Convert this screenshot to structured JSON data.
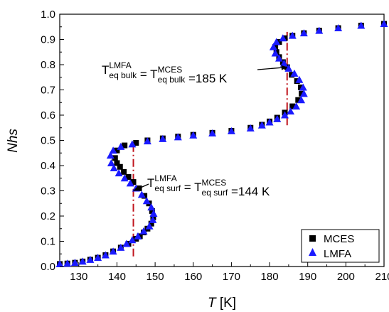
{
  "chart_data": {
    "type": "scatter",
    "xlabel": {
      "symbol": "T",
      "unit": " [K]"
    },
    "ylabel": "Nhs",
    "xlim": [
      125,
      210
    ],
    "ylim": [
      0.0,
      1.0
    ],
    "x_ticks": [
      130,
      140,
      150,
      160,
      170,
      180,
      190,
      200,
      210
    ],
    "y_ticks": [
      0.0,
      0.1,
      0.2,
      0.3,
      0.4,
      0.5,
      0.6,
      0.7,
      0.8,
      0.9,
      1.0
    ],
    "legend_position": "bottom-right",
    "grid": false,
    "series": [
      {
        "name": "MCES",
        "marker": "square",
        "color": "#000000",
        "points": [
          [
            125,
            0.01
          ],
          [
            127,
            0.012
          ],
          [
            129,
            0.015
          ],
          [
            131,
            0.02
          ],
          [
            133,
            0.027
          ],
          [
            135,
            0.035
          ],
          [
            137,
            0.045
          ],
          [
            139,
            0.06
          ],
          [
            141,
            0.075
          ],
          [
            143,
            0.09
          ],
          [
            145,
            0.11
          ],
          [
            146,
            0.12
          ],
          [
            147,
            0.135
          ],
          [
            148,
            0.15
          ],
          [
            149,
            0.17
          ],
          [
            149.5,
            0.195
          ],
          [
            149.2,
            0.22
          ],
          [
            148.4,
            0.25
          ],
          [
            147.2,
            0.28
          ],
          [
            145.8,
            0.31
          ],
          [
            144.3,
            0.335
          ],
          [
            143,
            0.355
          ],
          [
            141.8,
            0.375
          ],
          [
            140.8,
            0.395
          ],
          [
            140,
            0.41
          ],
          [
            139.5,
            0.43
          ],
          [
            140,
            0.46
          ],
          [
            142,
            0.48
          ],
          [
            145,
            0.49
          ],
          [
            148,
            0.5
          ],
          [
            152,
            0.508
          ],
          [
            156,
            0.515
          ],
          [
            160,
            0.522
          ],
          [
            165,
            0.53
          ],
          [
            170,
            0.538
          ],
          [
            175,
            0.55
          ],
          [
            178,
            0.562
          ],
          [
            180,
            0.575
          ],
          [
            182,
            0.59
          ],
          [
            184,
            0.61
          ],
          [
            186,
            0.635
          ],
          [
            187.5,
            0.66
          ],
          [
            188.4,
            0.685
          ],
          [
            188.2,
            0.71
          ],
          [
            187.2,
            0.735
          ],
          [
            185.8,
            0.76
          ],
          [
            184.6,
            0.79
          ],
          [
            183.5,
            0.81
          ],
          [
            182.5,
            0.83
          ],
          [
            181.8,
            0.85
          ],
          [
            181.5,
            0.87
          ],
          [
            182.5,
            0.89
          ],
          [
            184,
            0.905
          ],
          [
            186,
            0.915
          ],
          [
            189,
            0.925
          ],
          [
            193,
            0.935
          ],
          [
            198,
            0.945
          ],
          [
            204,
            0.955
          ],
          [
            210,
            0.962
          ]
        ]
      },
      {
        "name": "LMFA",
        "marker": "triangle",
        "color": "#1a1aff",
        "points": [
          [
            125,
            0.01
          ],
          [
            127,
            0.012
          ],
          [
            129,
            0.015
          ],
          [
            131,
            0.02
          ],
          [
            133,
            0.027
          ],
          [
            135,
            0.035
          ],
          [
            137,
            0.045
          ],
          [
            139,
            0.06
          ],
          [
            141,
            0.075
          ],
          [
            142.5,
            0.09
          ],
          [
            144,
            0.105
          ],
          [
            145.5,
            0.12
          ],
          [
            147,
            0.14
          ],
          [
            148.5,
            0.16
          ],
          [
            149.4,
            0.185
          ],
          [
            149.6,
            0.21
          ],
          [
            149,
            0.235
          ],
          [
            147.8,
            0.26
          ],
          [
            146.5,
            0.285
          ],
          [
            145,
            0.31
          ],
          [
            143.5,
            0.33
          ],
          [
            142,
            0.35
          ],
          [
            140.5,
            0.37
          ],
          [
            139.2,
            0.39
          ],
          [
            138.5,
            0.41
          ],
          [
            138.3,
            0.44
          ],
          [
            139,
            0.46
          ],
          [
            141,
            0.475
          ],
          [
            144,
            0.485
          ],
          [
            148,
            0.497
          ],
          [
            152,
            0.506
          ],
          [
            156,
            0.513
          ],
          [
            160,
            0.52
          ],
          [
            165,
            0.528
          ],
          [
            170,
            0.537
          ],
          [
            175,
            0.548
          ],
          [
            178,
            0.56
          ],
          [
            180,
            0.572
          ],
          [
            182,
            0.585
          ],
          [
            184,
            0.6
          ],
          [
            185.5,
            0.615
          ],
          [
            187,
            0.635
          ],
          [
            188.3,
            0.66
          ],
          [
            189,
            0.685
          ],
          [
            188.8,
            0.71
          ],
          [
            187.8,
            0.74
          ],
          [
            186.5,
            0.765
          ],
          [
            185,
            0.785
          ],
          [
            183.8,
            0.805
          ],
          [
            182.5,
            0.825
          ],
          [
            181.5,
            0.845
          ],
          [
            181,
            0.87
          ],
          [
            181.8,
            0.89
          ],
          [
            183.5,
            0.905
          ],
          [
            186,
            0.915
          ],
          [
            189,
            0.925
          ],
          [
            193,
            0.935
          ],
          [
            198,
            0.945
          ],
          [
            204,
            0.955
          ],
          [
            210,
            0.962
          ]
        ]
      }
    ],
    "vlines": [
      {
        "x": 144.3,
        "y_from": 0.04,
        "y_to": 0.48,
        "color": "#c0141c"
      },
      {
        "x": 184.6,
        "y_from": 0.56,
        "y_to": 0.93,
        "color": "#c0141c"
      }
    ],
    "annotations": [
      {
        "id": "bulk",
        "parts": [
          {
            "base": "T",
            "sup": "LMFA",
            "sub": "eq bulk"
          },
          {
            "text": " = "
          },
          {
            "base": "T",
            "sup": "MCES",
            "sub": "eq bulk"
          },
          {
            "text": " =185 K"
          }
        ],
        "arrow_to": [
          184.6,
          0.79
        ]
      },
      {
        "id": "surf",
        "parts": [
          {
            "base": "T",
            "sup": "LMFA",
            "sub": "eq surf"
          },
          {
            "text": " = "
          },
          {
            "base": "T",
            "sup": "MCES",
            "sub": "eq surf"
          },
          {
            "text": " =144 K"
          }
        ],
        "arrow_to": [
          144.3,
          0.3
        ]
      }
    ]
  }
}
